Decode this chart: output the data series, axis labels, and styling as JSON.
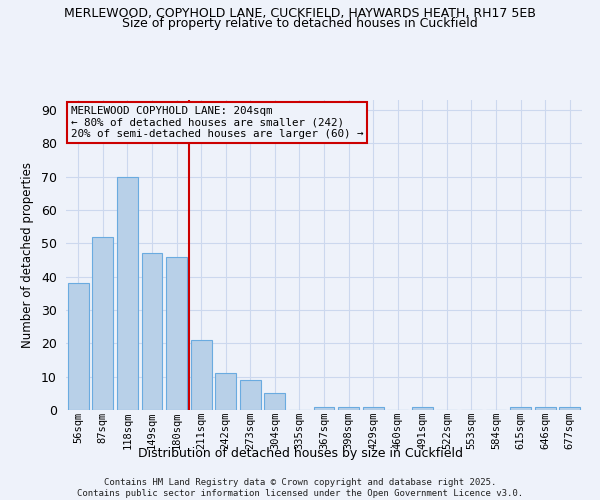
{
  "title1": "MERLEWOOD, COPYHOLD LANE, CUCKFIELD, HAYWARDS HEATH, RH17 5EB",
  "title2": "Size of property relative to detached houses in Cuckfield",
  "xlabel": "Distribution of detached houses by size in Cuckfield",
  "ylabel": "Number of detached properties",
  "categories": [
    "56sqm",
    "87sqm",
    "118sqm",
    "149sqm",
    "180sqm",
    "211sqm",
    "242sqm",
    "273sqm",
    "304sqm",
    "335sqm",
    "367sqm",
    "398sqm",
    "429sqm",
    "460sqm",
    "491sqm",
    "522sqm",
    "553sqm",
    "584sqm",
    "615sqm",
    "646sqm",
    "677sqm"
  ],
  "values": [
    38,
    52,
    70,
    47,
    46,
    21,
    11,
    9,
    5,
    0,
    1,
    1,
    1,
    0,
    1,
    0,
    0,
    0,
    1,
    1,
    1
  ],
  "bar_color": "#b8d0e8",
  "bar_edge_color": "#6aabe0",
  "vline_idx": 5,
  "vline_color": "#cc0000",
  "ylim": [
    0,
    93
  ],
  "yticks": [
    0,
    10,
    20,
    30,
    40,
    50,
    60,
    70,
    80,
    90
  ],
  "annotation_text": "MERLEWOOD COPYHOLD LANE: 204sqm\n← 80% of detached houses are smaller (242)\n20% of semi-detached houses are larger (60) →",
  "annotation_box_color": "#cc0000",
  "footer": "Contains HM Land Registry data © Crown copyright and database right 2025.\nContains public sector information licensed under the Open Government Licence v3.0.",
  "background_color": "#eef2fa",
  "grid_color": "#ccd8ee"
}
